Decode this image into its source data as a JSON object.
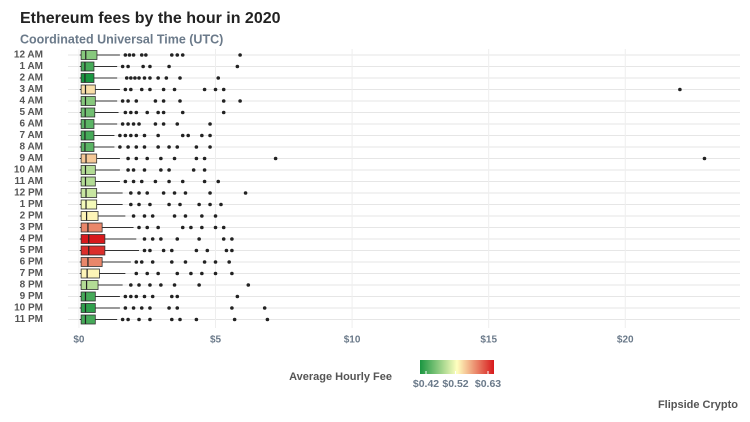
{
  "chart_data": {
    "type": "box",
    "title": "Ethereum fees by the hour in 2020",
    "subtitle": "Coordinated Universal Time (UTC)",
    "source": "Flipside Crypto",
    "categories": [
      "12 AM",
      "1 AM",
      "2 AM",
      "3 AM",
      "4 AM",
      "5 AM",
      "6 AM",
      "7 AM",
      "8 AM",
      "9 AM",
      "10 AM",
      "11 AM",
      "12 PM",
      "1 PM",
      "2 PM",
      "3 PM",
      "4 PM",
      "5 PM",
      "6 PM",
      "7 PM",
      "8 PM",
      "9 PM",
      "10 PM",
      "11 PM"
    ],
    "low": [
      0.03,
      0.03,
      0.03,
      0.03,
      0.03,
      0.03,
      0.03,
      0.03,
      0.03,
      0.03,
      0.03,
      0.03,
      0.03,
      0.03,
      0.03,
      0.03,
      0.03,
      0.03,
      0.03,
      0.03,
      0.03,
      0.03,
      0.03,
      0.03
    ],
    "q1": [
      0.08,
      0.08,
      0.08,
      0.08,
      0.08,
      0.08,
      0.08,
      0.08,
      0.08,
      0.08,
      0.08,
      0.08,
      0.08,
      0.08,
      0.08,
      0.08,
      0.08,
      0.08,
      0.08,
      0.08,
      0.08,
      0.08,
      0.08,
      0.08
    ],
    "median": [
      0.25,
      0.22,
      0.22,
      0.24,
      0.24,
      0.23,
      0.22,
      0.22,
      0.22,
      0.26,
      0.24,
      0.24,
      0.26,
      0.26,
      0.28,
      0.33,
      0.36,
      0.36,
      0.33,
      0.3,
      0.28,
      0.24,
      0.24,
      0.24
    ],
    "q3": [
      0.66,
      0.55,
      0.55,
      0.6,
      0.6,
      0.58,
      0.55,
      0.55,
      0.55,
      0.65,
      0.6,
      0.6,
      0.65,
      0.65,
      0.7,
      0.85,
      0.95,
      0.95,
      0.85,
      0.75,
      0.7,
      0.6,
      0.6,
      0.6
    ],
    "high": [
      1.5,
      1.4,
      1.4,
      1.5,
      1.4,
      1.45,
      1.4,
      1.3,
      1.3,
      1.5,
      1.5,
      1.5,
      1.6,
      1.6,
      1.7,
      2.0,
      2.1,
      2.2,
      1.9,
      1.7,
      1.6,
      1.5,
      1.5,
      1.4
    ],
    "outliers": [
      [
        1.7,
        1.85,
        2.0,
        2.3,
        2.45,
        3.4,
        3.6,
        3.8,
        5.9
      ],
      [
        1.6,
        1.8,
        2.35,
        2.6,
        3.3,
        5.8
      ],
      [
        1.75,
        1.9,
        2.05,
        2.2,
        2.4,
        2.6,
        2.9,
        3.2,
        3.7,
        5.1
      ],
      [
        1.7,
        1.9,
        2.3,
        2.6,
        3.1,
        3.5,
        4.6,
        5.0,
        5.3,
        22.0
      ],
      [
        1.6,
        1.8,
        2.1,
        2.8,
        3.1,
        3.7,
        5.3,
        5.9
      ],
      [
        1.7,
        1.9,
        2.1,
        2.5,
        2.9,
        3.1,
        3.8,
        5.3
      ],
      [
        1.6,
        1.8,
        2.0,
        2.2,
        2.8,
        3.1,
        3.6,
        4.8
      ],
      [
        1.5,
        1.7,
        1.9,
        2.1,
        2.4,
        2.9,
        3.8,
        4.0,
        4.5,
        4.8
      ],
      [
        1.5,
        1.8,
        2.1,
        2.4,
        2.9,
        3.3,
        3.6,
        4.3,
        4.8
      ],
      [
        1.8,
        2.1,
        2.5,
        3.0,
        3.5,
        4.3,
        4.6,
        7.2,
        22.9
      ],
      [
        1.8,
        2.0,
        2.4,
        3.0,
        3.3,
        4.2,
        4.6
      ],
      [
        1.7,
        2.0,
        2.3,
        2.8,
        3.3,
        3.8,
        4.6,
        5.1
      ],
      [
        1.9,
        2.2,
        2.5,
        3.1,
        3.5,
        3.9,
        4.8,
        6.1
      ],
      [
        1.9,
        2.2,
        2.6,
        3.3,
        3.7,
        4.4,
        4.8,
        5.2
      ],
      [
        2.0,
        2.4,
        2.7,
        3.5,
        3.9,
        4.5,
        5.0
      ],
      [
        2.2,
        2.5,
        2.9,
        3.8,
        4.1,
        4.5,
        5.0,
        5.3
      ],
      [
        2.4,
        2.7,
        3.0,
        3.6,
        4.4,
        5.3,
        5.6
      ],
      [
        2.4,
        2.6,
        3.1,
        3.4,
        4.3,
        4.7,
        5.4,
        5.6
      ],
      [
        2.1,
        2.3,
        2.7,
        3.4,
        3.9,
        4.6,
        5.0,
        5.5
      ],
      [
        2.1,
        2.5,
        2.9,
        3.6,
        4.1,
        4.5,
        5.0,
        5.6
      ],
      [
        1.9,
        2.2,
        2.6,
        3.0,
        3.5,
        4.4,
        6.2
      ],
      [
        1.7,
        1.9,
        2.1,
        2.4,
        2.7,
        3.4,
        3.6,
        5.8
      ],
      [
        1.7,
        2.0,
        2.3,
        2.6,
        3.3,
        3.6,
        5.6,
        6.8
      ],
      [
        1.6,
        1.8,
        2.2,
        2.6,
        3.4,
        3.7,
        4.3,
        5.7,
        6.9
      ]
    ],
    "avg_fee": [
      0.47,
      0.44,
      0.42,
      0.54,
      0.47,
      0.46,
      0.45,
      0.44,
      0.45,
      0.55,
      0.49,
      0.49,
      0.5,
      0.52,
      0.53,
      0.58,
      0.63,
      0.62,
      0.58,
      0.53,
      0.49,
      0.44,
      0.43,
      0.44
    ],
    "xlim": [
      -0.4,
      24.2
    ],
    "xticks": [
      {
        "value": 0,
        "label": "$0"
      },
      {
        "value": 5,
        "label": "$5"
      },
      {
        "value": 10,
        "label": "$10"
      },
      {
        "value": 15,
        "label": "$15"
      },
      {
        "value": 20,
        "label": "$20"
      }
    ],
    "grid": true,
    "colorbar": {
      "title": "Average Hourly Fee",
      "clim": [
        0.42,
        0.63
      ],
      "colors": [
        "#1a9641",
        "#ffffbf",
        "#d7191c"
      ],
      "ticks": [
        {
          "value": 0.42,
          "label": "$0.42"
        },
        {
          "value": 0.52,
          "label": "$0.52"
        },
        {
          "value": 0.63,
          "label": "$0.63"
        }
      ]
    }
  }
}
